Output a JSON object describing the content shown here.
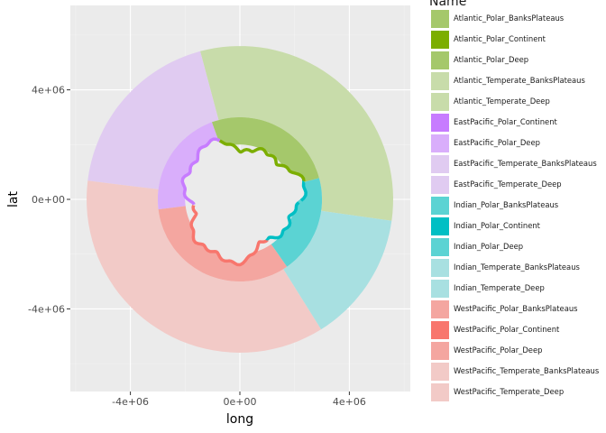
{
  "chart_data": {
    "type": "map",
    "xlabel": "long",
    "ylabel": "lat",
    "xlim": [
      -7000000,
      7000000
    ],
    "ylim": [
      -7000000,
      7000000
    ],
    "x_ticks": [
      {
        "value": -4000000,
        "label": "-4e+06"
      },
      {
        "value": 0,
        "label": "0e+00"
      },
      {
        "value": 4000000,
        "label": "4e+06"
      }
    ],
    "y_ticks": [
      {
        "value": -4000000,
        "label": "-4e+06"
      },
      {
        "value": 0,
        "label": "0e+00"
      },
      {
        "value": 4000000,
        "label": "4e+06"
      }
    ],
    "grid": true,
    "legend": {
      "title": "Name",
      "position": "right",
      "entries": [
        {
          "name": "Atlantic_Polar_BanksPlateaus",
          "color": "#a5c86b"
        },
        {
          "name": "Atlantic_Polar_Continent",
          "color": "#7cae00"
        },
        {
          "name": "Atlantic_Polar_Deep",
          "color": "#a5c86b"
        },
        {
          "name": "Atlantic_Temperate_BanksPlateaus",
          "color": "#c8dcaa"
        },
        {
          "name": "Atlantic_Temperate_Deep",
          "color": "#c8dcaa"
        },
        {
          "name": "EastPacific_Polar_Continent",
          "color": "#c77cff"
        },
        {
          "name": "EastPacific_Polar_Deep",
          "color": "#d9aefb"
        },
        {
          "name": "EastPacific_Temperate_BanksPlateaus",
          "color": "#e0cbf1"
        },
        {
          "name": "EastPacific_Temperate_Deep",
          "color": "#e0cbf1"
        },
        {
          "name": "Indian_Polar_BanksPlateaus",
          "color": "#5bd3d3"
        },
        {
          "name": "Indian_Polar_Continent",
          "color": "#00bfc4"
        },
        {
          "name": "Indian_Polar_Deep",
          "color": "#5bd3d3"
        },
        {
          "name": "Indian_Temperate_BanksPlateaus",
          "color": "#a8e0e1"
        },
        {
          "name": "Indian_Temperate_Deep",
          "color": "#a8e0e1"
        },
        {
          "name": "WestPacific_Polar_BanksPlateaus",
          "color": "#f4a6a0"
        },
        {
          "name": "WestPacific_Polar_Continent",
          "color": "#f8766d"
        },
        {
          "name": "WestPacific_Polar_Deep",
          "color": "#f4a6a0"
        },
        {
          "name": "WestPacific_Temperate_BanksPlateaus",
          "color": "#f2cac7"
        },
        {
          "name": "WestPacific_Temperate_Deep",
          "color": "#f2cac7"
        }
      ]
    },
    "regions": [
      {
        "name": "Atlantic_Temperate_Deep",
        "ring": "temperate",
        "from_deg": -8,
        "to_deg": 105
      },
      {
        "name": "EastPacific_Temperate_Deep",
        "ring": "temperate",
        "from_deg": 105,
        "to_deg": 173
      },
      {
        "name": "WestPacific_Temperate_Deep",
        "ring": "temperate",
        "from_deg": 173,
        "to_deg": 302
      },
      {
        "name": "Indian_Temperate_Deep",
        "ring": "temperate",
        "from_deg": 302,
        "to_deg": 352
      },
      {
        "name": "Atlantic_Polar_Deep",
        "ring": "polar",
        "from_deg": 15,
        "to_deg": 110
      },
      {
        "name": "EastPacific_Polar_Deep",
        "ring": "polar",
        "from_deg": 110,
        "to_deg": 187
      },
      {
        "name": "WestPacific_Polar_Deep",
        "ring": "polar",
        "from_deg": 187,
        "to_deg": 305
      },
      {
        "name": "Indian_Polar_Deep",
        "ring": "polar",
        "from_deg": 305,
        "to_deg": 375
      }
    ],
    "ring_radius": {
      "continent": 2000000,
      "polar": 3000000,
      "temperate": 5600000
    }
  },
  "colors": {
    "panel_bg": "#ebebeb",
    "grid_major": "#ffffff",
    "grid_minor": "#f4f4f4",
    "axis_text": "#4d4d4d",
    "title_text": "#000000"
  }
}
